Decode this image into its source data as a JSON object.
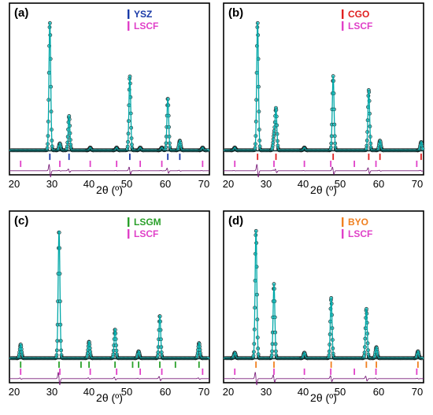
{
  "colors": {
    "fit": "#00a8a8",
    "obs_stroke": "#1a1a1a",
    "obs_fill": "#5ed6d6",
    "diff": "#7a1e7a",
    "frame": "#000000"
  },
  "chart_data": [
    {
      "type": "scatter",
      "panel": "(a)",
      "xlabel": "2θ (º)",
      "ylabel": "",
      "xlim": [
        20,
        70
      ],
      "xticks": [
        20,
        30,
        40,
        50,
        60,
        70
      ],
      "legend": [
        {
          "name": "YSZ",
          "color": "#1a3aa8"
        },
        {
          "name": "LSCF",
          "color": "#e040c8"
        }
      ],
      "peaks": [
        {
          "pos": 30.1,
          "height": 0.93
        },
        {
          "pos": 32.6,
          "height": 0.05
        },
        {
          "pos": 34.9,
          "height": 0.25
        },
        {
          "pos": 40.2,
          "height": 0.02
        },
        {
          "pos": 46.8,
          "height": 0.02
        },
        {
          "pos": 50.1,
          "height": 0.54
        },
        {
          "pos": 52.7,
          "height": 0.02
        },
        {
          "pos": 58.1,
          "height": 0.02
        },
        {
          "pos": 59.6,
          "height": 0.38
        },
        {
          "pos": 62.6,
          "height": 0.07
        },
        {
          "pos": 68.3,
          "height": 0.02
        }
      ],
      "ticks": [
        {
          "series": "YSZ",
          "positions": [
            30.1,
            34.9,
            50.1,
            59.6,
            62.6
          ]
        },
        {
          "series": "LSCF",
          "positions": [
            22.8,
            32.6,
            40.2,
            46.8,
            52.7,
            58.1,
            68.3
          ]
        }
      ]
    },
    {
      "type": "scatter",
      "panel": "(b)",
      "xlabel": "2θ (º)",
      "ylabel": "",
      "xlim": [
        20,
        70
      ],
      "xticks": [
        20,
        30,
        40,
        50,
        60,
        70
      ],
      "legend": [
        {
          "name": "CGO",
          "color": "#e02020"
        },
        {
          "name": "LSCF",
          "color": "#e040c8"
        }
      ],
      "peaks": [
        {
          "pos": 22.8,
          "height": 0.02
        },
        {
          "pos": 28.5,
          "height": 0.93
        },
        {
          "pos": 32.6,
          "height": 0.1
        },
        {
          "pos": 33.1,
          "height": 0.3
        },
        {
          "pos": 40.2,
          "height": 0.02
        },
        {
          "pos": 47.4,
          "height": 0.54
        },
        {
          "pos": 56.3,
          "height": 0.44
        },
        {
          "pos": 59.1,
          "height": 0.07
        },
        {
          "pos": 69.4,
          "height": 0.06
        }
      ],
      "ticks": [
        {
          "series": "CGO",
          "positions": [
            28.5,
            33.1,
            47.4,
            56.3,
            59.1,
            69.4
          ]
        },
        {
          "series": "LSCF",
          "positions": [
            22.8,
            32.6,
            40.2,
            46.8,
            52.7,
            58.1,
            68.3
          ]
        }
      ]
    },
    {
      "type": "scatter",
      "panel": "(c)",
      "xlabel": "2θ (º)",
      "ylabel": "",
      "xlim": [
        20,
        70
      ],
      "xticks": [
        20,
        30,
        40,
        50,
        60,
        70
      ],
      "legend": [
        {
          "name": "LSGM",
          "color": "#2aa02a"
        },
        {
          "name": "LSCF",
          "color": "#e040c8"
        }
      ],
      "peaks": [
        {
          "pos": 22.8,
          "height": 0.1
        },
        {
          "pos": 32.4,
          "height": 0.93
        },
        {
          "pos": 39.9,
          "height": 0.12
        },
        {
          "pos": 46.4,
          "height": 0.21
        },
        {
          "pos": 52.3,
          "height": 0.05
        },
        {
          "pos": 57.6,
          "height": 0.31
        },
        {
          "pos": 67.4,
          "height": 0.11
        }
      ],
      "ticks": [
        {
          "series": "LSGM",
          "positions": [
            22.8,
            32.4,
            37.9,
            39.9,
            46.4,
            50.8,
            52.3,
            57.6,
            61.5,
            67.4
          ]
        },
        {
          "series": "LSCF",
          "positions": [
            22.8,
            32.6,
            40.2,
            46.8,
            52.7,
            58.1,
            68.3
          ]
        }
      ]
    },
    {
      "type": "scatter",
      "panel": "(d)",
      "xlabel": "2θ (º)",
      "ylabel": "",
      "xlim": [
        20,
        70
      ],
      "xticks": [
        20,
        30,
        40,
        50,
        60,
        70
      ],
      "legend": [
        {
          "name": "BYO",
          "color": "#f08020"
        },
        {
          "name": "LSCF",
          "color": "#e040c8"
        }
      ],
      "peaks": [
        {
          "pos": 22.8,
          "height": 0.04
        },
        {
          "pos": 28.1,
          "height": 0.93
        },
        {
          "pos": 32.6,
          "height": 0.54
        },
        {
          "pos": 40.2,
          "height": 0.04
        },
        {
          "pos": 46.9,
          "height": 0.44
        },
        {
          "pos": 55.7,
          "height": 0.36
        },
        {
          "pos": 58.2,
          "height": 0.08
        },
        {
          "pos": 68.6,
          "height": 0.05
        }
      ],
      "ticks": [
        {
          "series": "BYO",
          "positions": [
            28.1,
            32.6,
            46.9,
            55.7,
            58.2,
            68.6
          ]
        },
        {
          "series": "LSCF",
          "positions": [
            22.8,
            32.6,
            40.2,
            46.8,
            52.7,
            58.1,
            68.3
          ]
        }
      ]
    }
  ]
}
